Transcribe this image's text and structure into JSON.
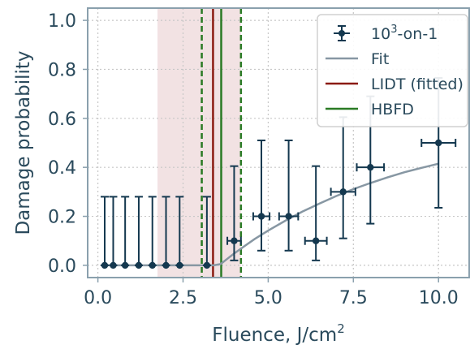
{
  "chart_data": {
    "type": "scatter",
    "xlabel": "Fluence, J/cm",
    "xlabel_superscript": "2",
    "ylabel": "Damage probability",
    "xlim": [
      -0.3,
      10.9
    ],
    "ylim": [
      -0.05,
      1.05
    ],
    "x_ticks": [
      0.0,
      2.5,
      5.0,
      7.5,
      10.0
    ],
    "x_tick_labels": [
      "0.0",
      "2.5",
      "5.0",
      "7.5",
      "10.0"
    ],
    "y_ticks": [
      0.0,
      0.2,
      0.4,
      0.6,
      0.8,
      1.0
    ],
    "y_tick_labels": [
      "0.0",
      "0.2",
      "0.4",
      "0.6",
      "0.8",
      "1.0"
    ],
    "grid": true,
    "legend_position": "top-right",
    "legend": {
      "data_label_base": "10",
      "data_label_sup": "3",
      "data_label_rest": "-on-1",
      "fit_label": "Fit",
      "lidt_label": "LIDT (fitted)",
      "hbfd_label": "HBFD"
    },
    "colors": {
      "data": "#14384f",
      "fit": "#8797a3",
      "lidt": "#8b1a10",
      "hbfd": "#2a7a24",
      "band": "#e9cfd0",
      "axis": "#8aa0ad",
      "grid": "#c7c7c7",
      "text": "#2a4a5c"
    },
    "points": [
      {
        "x": 0.2,
        "y": 0.0,
        "yerr_low": 0.0,
        "yerr_high": 0.28,
        "xerr": 0.0
      },
      {
        "x": 0.45,
        "y": 0.0,
        "yerr_low": 0.0,
        "yerr_high": 0.28,
        "xerr": 0.0
      },
      {
        "x": 0.8,
        "y": 0.0,
        "yerr_low": 0.0,
        "yerr_high": 0.28,
        "xerr": 0.0
      },
      {
        "x": 1.2,
        "y": 0.0,
        "yerr_low": 0.0,
        "yerr_high": 0.28,
        "xerr": 0.0
      },
      {
        "x": 1.6,
        "y": 0.0,
        "yerr_low": 0.0,
        "yerr_high": 0.28,
        "xerr": 0.0
      },
      {
        "x": 2.0,
        "y": 0.0,
        "yerr_low": 0.0,
        "yerr_high": 0.28,
        "xerr": 0.0
      },
      {
        "x": 2.4,
        "y": 0.0,
        "yerr_low": 0.0,
        "yerr_high": 0.28,
        "xerr": 0.0
      },
      {
        "x": 3.2,
        "y": 0.0,
        "yerr_low": 0.0,
        "yerr_high": 0.28,
        "xerr": 0.0
      },
      {
        "x": 4.0,
        "y": 0.1,
        "yerr_low": 0.08,
        "yerr_high": 0.305,
        "xerr": 0.2
      },
      {
        "x": 4.8,
        "y": 0.2,
        "yerr_low": 0.14,
        "yerr_high": 0.31,
        "xerr": 0.24
      },
      {
        "x": 5.6,
        "y": 0.2,
        "yerr_low": 0.14,
        "yerr_high": 0.31,
        "xerr": 0.28
      },
      {
        "x": 6.4,
        "y": 0.1,
        "yerr_low": 0.08,
        "yerr_high": 0.305,
        "xerr": 0.32
      },
      {
        "x": 7.2,
        "y": 0.3,
        "yerr_low": 0.19,
        "yerr_high": 0.305,
        "xerr": 0.36
      },
      {
        "x": 8.0,
        "y": 0.4,
        "yerr_low": 0.23,
        "yerr_high": 0.29,
        "xerr": 0.4
      },
      {
        "x": 10.0,
        "y": 0.5,
        "yerr_low": 0.265,
        "yerr_high": 0.265,
        "xerr": 0.5
      }
    ],
    "fit_curve": {
      "x": [
        0.2,
        1.0,
        2.0,
        3.0,
        3.4,
        3.6,
        3.8,
        4.0,
        4.3,
        4.6,
        5.0,
        5.5,
        6.0,
        6.5,
        7.0,
        7.5,
        8.0,
        8.5,
        9.0,
        9.5,
        10.0
      ],
      "y": [
        0.0,
        0.0,
        0.0,
        0.0,
        0.0,
        0.005,
        0.027,
        0.048,
        0.078,
        0.107,
        0.142,
        0.182,
        0.219,
        0.252,
        0.283,
        0.311,
        0.336,
        0.359,
        0.38,
        0.398,
        0.415
      ]
    },
    "lidt_x": 3.38,
    "hbfd_x": 3.62,
    "hbfd_lower": 3.05,
    "hbfd_upper": 4.2,
    "band_range": [
      1.75,
      4.2
    ]
  }
}
